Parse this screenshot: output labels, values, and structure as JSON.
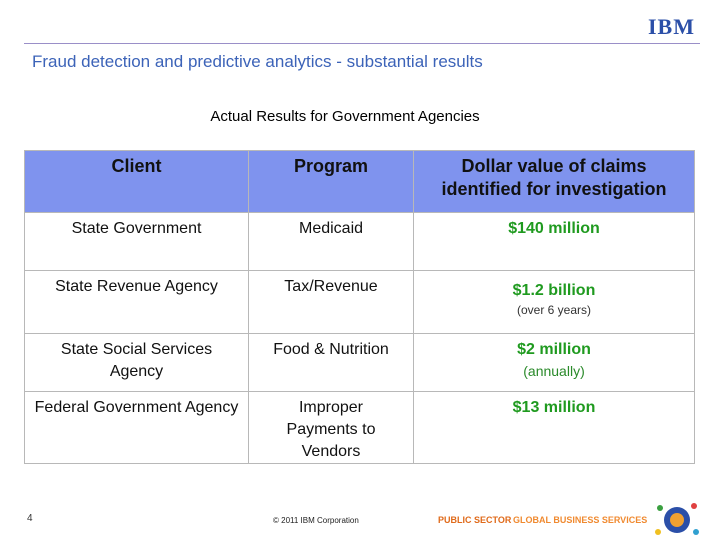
{
  "header": {
    "logo": "IBM",
    "title": "Fraud detection and predictive analytics - substantial results"
  },
  "subtitle": "Actual Results for Government Agencies",
  "table": {
    "columns": [
      "Client",
      "Program",
      "Dollar value of claims identified for investigation"
    ],
    "rows": [
      {
        "client": "State Government",
        "program": "Medicaid",
        "value": "$140 million"
      },
      {
        "client": "State Revenue Agency",
        "program": "Tax/Revenue",
        "value": "$1.2 billion",
        "note": "(over 6 years)"
      },
      {
        "client": "State Social Services Agency",
        "program": "Food & Nutrition",
        "value": "$2 million",
        "note": "(annually)"
      },
      {
        "client": "Federal Government Agency",
        "program": "Improper Payments to Vendors",
        "value": "$13 million"
      }
    ]
  },
  "footer": {
    "page": "4",
    "copyright": "© 2011 IBM Corporation",
    "brand_part1": "PUBLIC SECTOR",
    "brand_part2": "GLOBAL BUSINESS SERVICES"
  }
}
